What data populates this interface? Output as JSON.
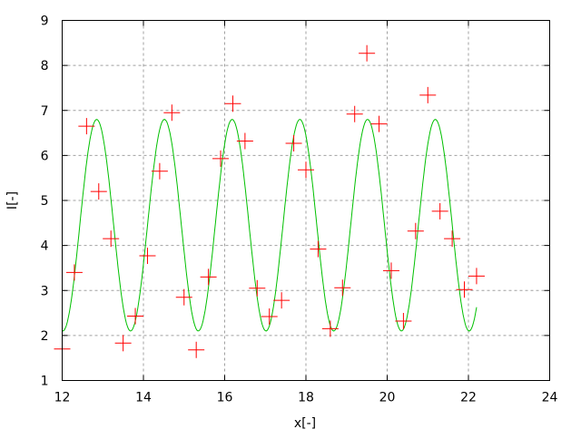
{
  "chart_data": {
    "type": "scatter",
    "title": "",
    "xlabel": "x[-]",
    "ylabel": "I[-]",
    "xlim": [
      12,
      24
    ],
    "ylim": [
      1,
      9
    ],
    "xticks": [
      "12",
      "14",
      "16",
      "18",
      "20",
      "22",
      "24"
    ],
    "yticks": [
      "1",
      "2",
      "3",
      "4",
      "5",
      "6",
      "7",
      "8",
      "9"
    ],
    "grid": true,
    "legend": "none",
    "series": [
      {
        "type": "scatter",
        "marker": "plus",
        "color": "#ff0000",
        "x": [
          12.0,
          12.3,
          12.6,
          12.9,
          13.2,
          13.5,
          13.8,
          14.1,
          14.4,
          14.7,
          15.0,
          15.3,
          15.6,
          15.9,
          16.2,
          16.5,
          16.8,
          17.1,
          17.4,
          17.7,
          18.0,
          18.3,
          18.6,
          18.9,
          19.2,
          19.5,
          19.8,
          20.1,
          20.4,
          20.7,
          21.0,
          21.3,
          21.6,
          21.9,
          22.2
        ],
        "y": [
          1.7,
          3.4,
          6.65,
          5.2,
          4.15,
          1.83,
          2.43,
          3.77,
          5.65,
          6.95,
          2.85,
          1.68,
          3.3,
          5.93,
          7.15,
          6.32,
          3.05,
          2.42,
          2.78,
          6.27,
          5.68,
          3.92,
          2.15,
          3.06,
          6.92,
          8.27,
          6.7,
          3.44,
          2.32,
          4.32,
          7.34,
          4.76,
          4.15,
          3.02,
          3.32
        ]
      },
      {
        "type": "line",
        "color": "#00c000",
        "function": "cosine",
        "offset": 4.45,
        "amplitude": 2.35,
        "period": 1.667,
        "peak_x": 12.85,
        "x_range": [
          12,
          22.2
        ]
      }
    ]
  }
}
